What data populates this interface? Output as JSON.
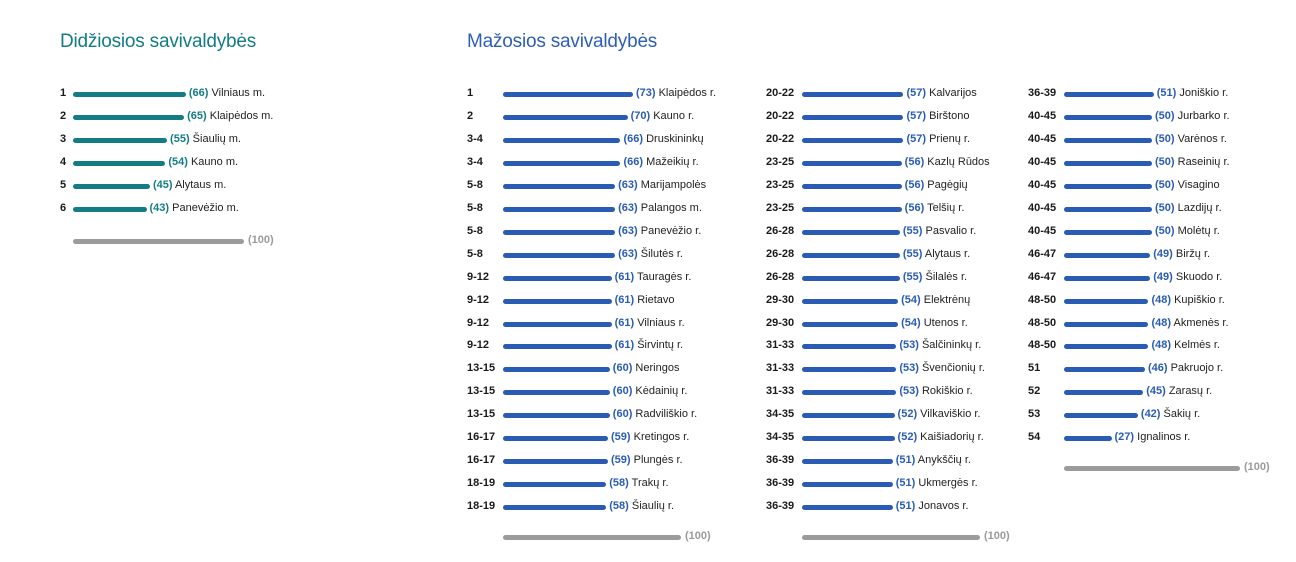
{
  "chart_data": [
    {
      "type": "bar",
      "orientation": "horizontal",
      "title": "Didžiosios savivaldybės",
      "color": "#137c85",
      "reference_value": 100,
      "reference_label": "(100)",
      "xlim": [
        0,
        100
      ],
      "items": [
        {
          "rank": "1",
          "value": 66,
          "name": "Vilniaus m."
        },
        {
          "rank": "2",
          "value": 65,
          "name": "Klaipėdos m."
        },
        {
          "rank": "3",
          "value": 55,
          "name": "Šiaulių m."
        },
        {
          "rank": "4",
          "value": 54,
          "name": "Kauno m."
        },
        {
          "rank": "5",
          "value": 45,
          "name": "Alytaus m."
        },
        {
          "rank": "6",
          "value": 43,
          "name": "Panevėžio m."
        }
      ]
    },
    {
      "type": "bar",
      "orientation": "horizontal",
      "title": "Mažosios savivaldybės",
      "color": "#2a5cb3",
      "reference_value": 100,
      "reference_label": "(100)",
      "xlim": [
        0,
        100
      ],
      "columns": [
        [
          {
            "rank": "1",
            "value": 73,
            "name": "Klaipėdos r."
          },
          {
            "rank": "2",
            "value": 70,
            "name": "Kauno r."
          },
          {
            "rank": "3-4",
            "value": 66,
            "name": "Druskininkų"
          },
          {
            "rank": "3-4",
            "value": 66,
            "name": "Mažeikių r."
          },
          {
            "rank": "5-8",
            "value": 63,
            "name": "Marijampolės"
          },
          {
            "rank": "5-8",
            "value": 63,
            "name": "Palangos m."
          },
          {
            "rank": "5-8",
            "value": 63,
            "name": "Panevėžio r."
          },
          {
            "rank": "5-8",
            "value": 63,
            "name": "Šilutės r."
          },
          {
            "rank": "9-12",
            "value": 61,
            "name": "Tauragės r."
          },
          {
            "rank": "9-12",
            "value": 61,
            "name": "Rietavo"
          },
          {
            "rank": "9-12",
            "value": 61,
            "name": "Vilniaus r."
          },
          {
            "rank": "9-12",
            "value": 61,
            "name": "Širvintų r."
          },
          {
            "rank": "13-15",
            "value": 60,
            "name": "Neringos"
          },
          {
            "rank": "13-15",
            "value": 60,
            "name": "Kėdainių r."
          },
          {
            "rank": "13-15",
            "value": 60,
            "name": "Radviliškio r."
          },
          {
            "rank": "16-17",
            "value": 59,
            "name": "Kretingos r."
          },
          {
            "rank": "16-17",
            "value": 59,
            "name": "Plungės r."
          },
          {
            "rank": "18-19",
            "value": 58,
            "name": "Trakų r."
          },
          {
            "rank": "18-19",
            "value": 58,
            "name": "Šiaulių r."
          }
        ],
        [
          {
            "rank": "20-22",
            "value": 57,
            "name": "Kalvarijos"
          },
          {
            "rank": "20-22",
            "value": 57,
            "name": "Birštono"
          },
          {
            "rank": "20-22",
            "value": 57,
            "name": "Prienų r."
          },
          {
            "rank": "23-25",
            "value": 56,
            "name": "Kazlų Rūdos"
          },
          {
            "rank": "23-25",
            "value": 56,
            "name": "Pagėgių"
          },
          {
            "rank": "23-25",
            "value": 56,
            "name": "Telšių r."
          },
          {
            "rank": "26-28",
            "value": 55,
            "name": "Pasvalio r."
          },
          {
            "rank": "26-28",
            "value": 55,
            "name": "Alytaus r."
          },
          {
            "rank": "26-28",
            "value": 55,
            "name": "Šilalės r."
          },
          {
            "rank": "29-30",
            "value": 54,
            "name": "Elektrėnų"
          },
          {
            "rank": "29-30",
            "value": 54,
            "name": "Utenos r."
          },
          {
            "rank": "31-33",
            "value": 53,
            "name": "Šalčininkų r."
          },
          {
            "rank": "31-33",
            "value": 53,
            "name": "Švenčionių r."
          },
          {
            "rank": "31-33",
            "value": 53,
            "name": "Rokiškio r."
          },
          {
            "rank": "34-35",
            "value": 52,
            "name": "Vilkaviškio r."
          },
          {
            "rank": "34-35",
            "value": 52,
            "name": "Kaišiadorių r."
          },
          {
            "rank": "36-39",
            "value": 51,
            "name": "Anykščių r."
          },
          {
            "rank": "36-39",
            "value": 51,
            "name": "Ukmergės r."
          },
          {
            "rank": "36-39",
            "value": 51,
            "name": "Jonavos r."
          }
        ],
        [
          {
            "rank": "36-39",
            "value": 51,
            "name": "Joniškio r."
          },
          {
            "rank": "40-45",
            "value": 50,
            "name": "Jurbarko r."
          },
          {
            "rank": "40-45",
            "value": 50,
            "name": "Varėnos r."
          },
          {
            "rank": "40-45",
            "value": 50,
            "name": "Raseinių r."
          },
          {
            "rank": "40-45",
            "value": 50,
            "name": "Visagino"
          },
          {
            "rank": "40-45",
            "value": 50,
            "name": "Lazdijų r."
          },
          {
            "rank": "40-45",
            "value": 50,
            "name": "Molėtų r."
          },
          {
            "rank": "46-47",
            "value": 49,
            "name": "Biržų r."
          },
          {
            "rank": "46-47",
            "value": 49,
            "name": "Skuodo r."
          },
          {
            "rank": "48-50",
            "value": 48,
            "name": "Kupiškio r."
          },
          {
            "rank": "48-50",
            "value": 48,
            "name": "Akmenės r."
          },
          {
            "rank": "48-50",
            "value": 48,
            "name": "Kelmės r."
          },
          {
            "rank": "51",
            "value": 46,
            "name": "Pakruojo r."
          },
          {
            "rank": "52",
            "value": 45,
            "name": "Zarasų r."
          },
          {
            "rank": "53",
            "value": 42,
            "name": "Šakių r."
          },
          {
            "rank": "54",
            "value": 27,
            "name": "Ignalinos r."
          }
        ]
      ]
    }
  ]
}
